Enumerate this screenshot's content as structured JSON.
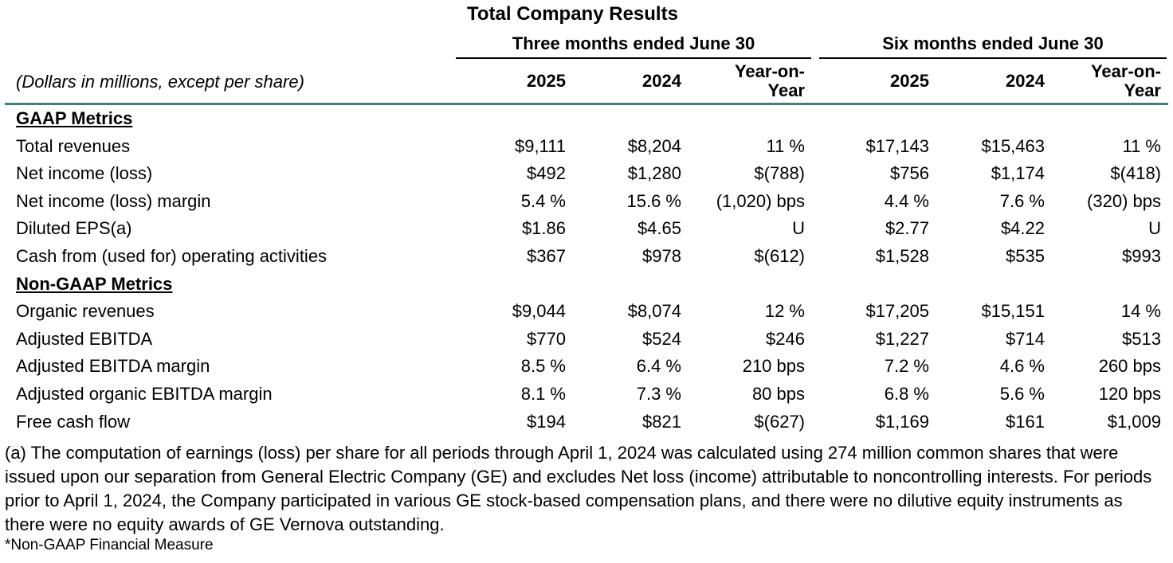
{
  "title": "Total Company Results",
  "header": {
    "period_three": "Three months ended June 30",
    "period_six": "Six months ended June 30",
    "units": "(Dollars in millions, except per share)",
    "columns": [
      "2025",
      "2024",
      "Year-on-",
      "Year",
      "2025",
      "2024",
      "Year-on-",
      "Year"
    ]
  },
  "sections": [
    {
      "heading": "GAAP Metrics",
      "rows": [
        {
          "label": "Total revenues",
          "values": [
            "$9,111",
            "$8,204",
            "11 %",
            "$17,143",
            "$15,463",
            "11 %"
          ]
        },
        {
          "label": "Net income (loss)",
          "values": [
            "$492",
            "$1,280",
            "$(788)",
            "$756",
            "$1,174",
            "$(418)"
          ]
        },
        {
          "label": "Net income (loss) margin",
          "values": [
            "5.4 %",
            "15.6 %",
            "(1,020) bps",
            "4.4 %",
            "7.6 %",
            "(320) bps"
          ]
        },
        {
          "label": "Diluted EPS(a)",
          "values": [
            "$1.86",
            "$4.65",
            "U",
            "$2.77",
            "$4.22",
            "U"
          ]
        },
        {
          "label": "Cash from (used for) operating activities",
          "values": [
            "$367",
            "$978",
            "$(612)",
            "$1,528",
            "$535",
            "$993"
          ]
        }
      ]
    },
    {
      "heading": "Non-GAAP Metrics",
      "rows": [
        {
          "label": "Organic revenues",
          "values": [
            "$9,044",
            "$8,074",
            "12 %",
            "$17,205",
            "$15,151",
            "14 %"
          ]
        },
        {
          "label": "Adjusted EBITDA",
          "values": [
            "$770",
            "$524",
            "$246",
            "$1,227",
            "$714",
            "$513"
          ]
        },
        {
          "label": "Adjusted EBITDA margin",
          "values": [
            "8.5 %",
            "6.4 %",
            "210 bps",
            "7.2 %",
            "4.6 %",
            "260 bps"
          ]
        },
        {
          "label": "Adjusted organic EBITDA margin",
          "values": [
            "8.1 %",
            "7.3 %",
            "80 bps",
            "6.8 %",
            "5.6 %",
            "120 bps"
          ]
        },
        {
          "label": "Free cash flow",
          "values": [
            "$194",
            "$821",
            "$(627)",
            "$1,169",
            "$161",
            "$1,009"
          ]
        }
      ]
    }
  ],
  "footnote": "(a) The computation of earnings (loss) per share for all periods through April 1, 2024 was calculated using 274 million common shares that were issued upon our separation from General Electric Company (GE) and excludes Net loss (income) attributable to noncontrolling interests. For periods prior to April 1, 2024, the Company participated in various GE stock-based compensation plans, and there were no dilutive equity instruments as there were no equity awards of GE Vernova outstanding.",
  "note": "*Non-GAAP Financial Measure"
}
